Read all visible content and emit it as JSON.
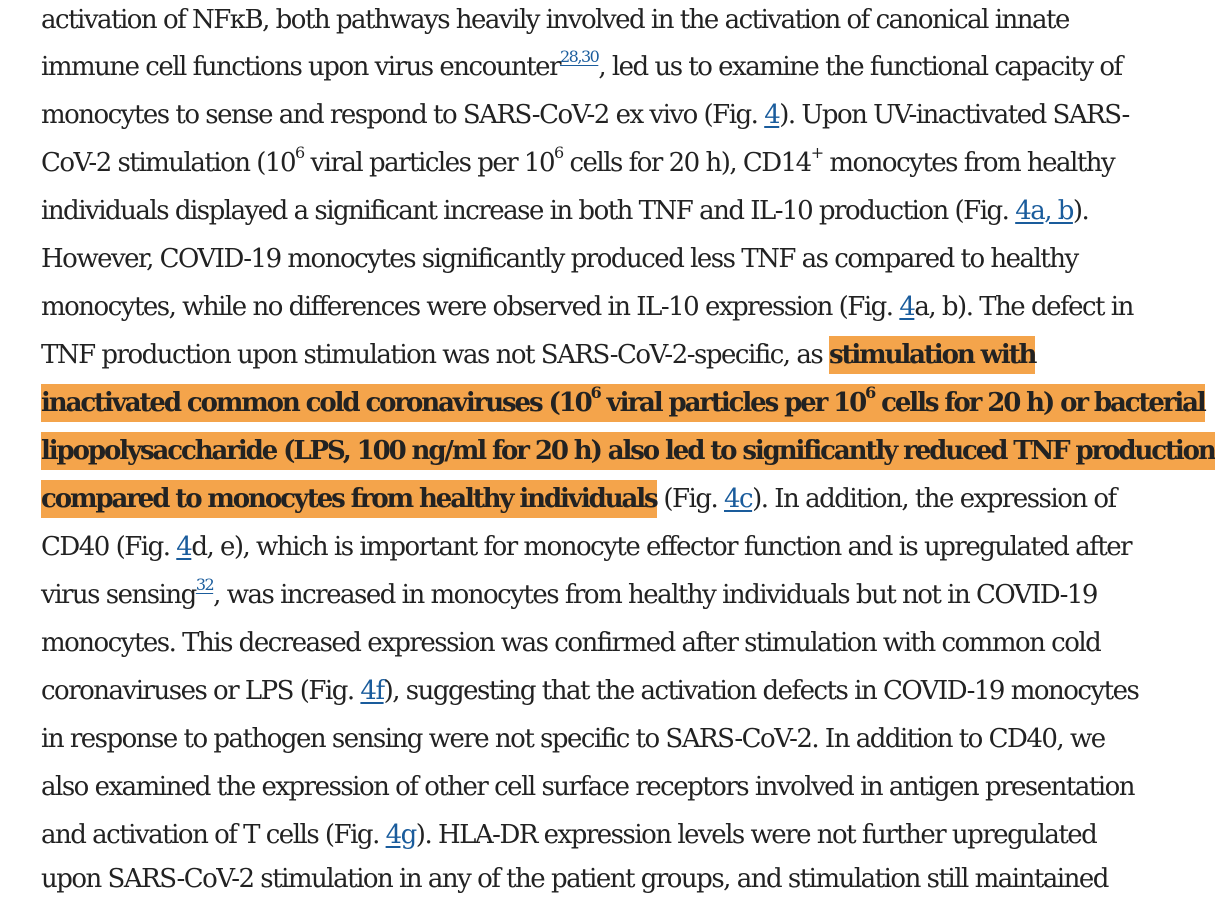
{
  "paragraph": {
    "l1": {
      "t": "activation of NFκB, both pathways heavily involved in the activation of canonical innate"
    },
    "l2": {
      "a": "immune cell functions upon virus encounter",
      "ref": "28,30",
      "b": ", led us to examine the functional capacity of"
    },
    "l3": {
      "a": "monocytes to sense and respond to SARS-CoV-2 ex vivo (Fig. ",
      "fig": "4",
      "b": "). Upon UV-inactivated SARS-"
    },
    "l4": {
      "a": "CoV-2 stimulation (10",
      "e1": "6",
      "b": " viral particles per 10",
      "e2": "6",
      "c": " cells for 20 h), CD14",
      "plus": "+",
      "d": " monocytes from healthy"
    },
    "l5": {
      "a": "individuals displayed a significant increase in both TNF and IL-10 production (Fig. ",
      "fig": "4a, b",
      "b": ")."
    },
    "l6": {
      "t": "However, COVID-19 monocytes significantly produced less TNF as compared to healthy"
    },
    "l7": {
      "a": "monocytes, while no differences were observed in IL-10 expression (Fig. ",
      "fig": "4",
      "b": "a, b). The defect in"
    },
    "l8": {
      "a": "TNF production upon stimulation was not SARS-CoV-2-specific, as ",
      "h": "stimulation with"
    },
    "l9": {
      "a": "inactivated common cold coronaviruses (10",
      "e1": "6",
      "b": " viral particles per 10",
      "e2": "6",
      "c": " cells for 20 h) or bacterial"
    },
    "l10": {
      "t": "lipopolysaccharide (LPS, 100 ng/ml for 20 h) also led to significantly reduced TNF production"
    },
    "l11": {
      "h": "compared to monocytes from healthy individuals",
      "a": " (Fig. ",
      "fig": "4c",
      "b": "). In addition, the expression of"
    },
    "l12": {
      "a": "CD40 (Fig. ",
      "fig": "4",
      "b": "d, e), which is important for monocyte effector function and is upregulated after"
    },
    "l13": {
      "a": "virus sensing",
      "ref": "32",
      "b": ", was increased in monocytes from healthy individuals but not in COVID-19"
    },
    "l14": {
      "t": "monocytes. This decreased expression was confirmed after stimulation with common cold"
    },
    "l15": {
      "a": "coronaviruses or LPS (Fig. ",
      "fig": "4f",
      "b": "), suggesting that the activation defects in COVID-19 monocytes"
    },
    "l16": {
      "t": "in response to pathogen sensing were not specific to SARS-CoV-2. In addition to CD40, we"
    },
    "l17": {
      "t": "also examined the expression of other cell surface receptors involved in antigen presentation"
    },
    "l18": {
      "a": "and activation of T cells (Fig. ",
      "fig": "4g",
      "b": "). HLA-DR expression levels were not further upregulated"
    },
    "l19": {
      "t": "upon SARS-CoV-2 stimulation in any of the patient groups, and stimulation still maintained"
    }
  },
  "colors": {
    "text": "#222222",
    "link": "#1a5c9c",
    "highlight": "#f4a44b"
  }
}
